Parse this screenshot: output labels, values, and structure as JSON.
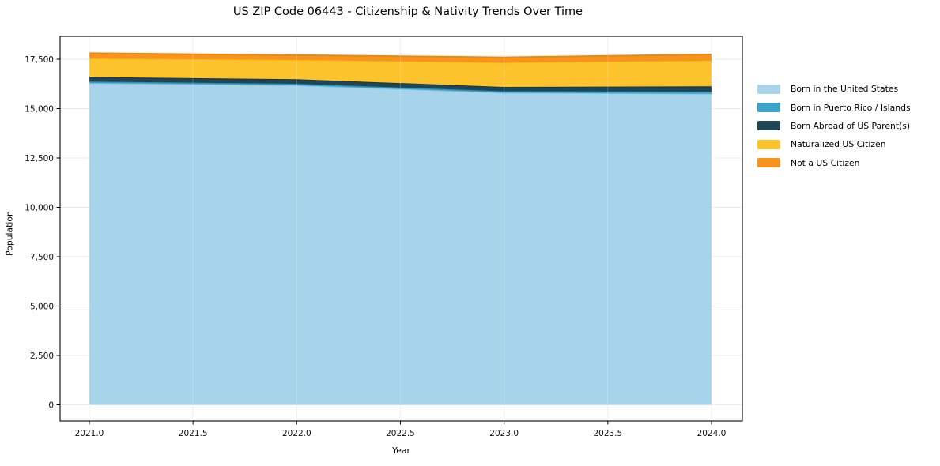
{
  "chart_data": {
    "type": "area",
    "stacked": true,
    "title": "US ZIP Code 06443 - Citizenship & Nativity Trends Over Time",
    "xlabel": "Year",
    "ylabel": "Population",
    "x": [
      2021,
      2022,
      2023,
      2024
    ],
    "series": [
      {
        "name": "Born in the United States",
        "values": [
          16290,
          16180,
          15800,
          15750
        ],
        "color": "#a7d4ea",
        "edge": "#8ec6e2"
      },
      {
        "name": "Born in Puerto Rico / Islands",
        "values": [
          80,
          80,
          80,
          110
        ],
        "color": "#3ba3c6",
        "edge": "#2e92b4"
      },
      {
        "name": "Born Abroad of US Parent(s)",
        "values": [
          230,
          230,
          220,
          270
        ],
        "color": "#1f4557",
        "edge": "#16364a"
      },
      {
        "name": "Naturalized US Citizen",
        "values": [
          940,
          975,
          1230,
          1300
        ],
        "color": "#fcc32d",
        "edge": "#f5b912"
      },
      {
        "name": "Not a US Citizen",
        "values": [
          265,
          240,
          265,
          310
        ],
        "color": "#f6941f",
        "edge": "#ee860f"
      }
    ],
    "x_ticks": [
      2021.0,
      2021.5,
      2022.0,
      2022.5,
      2023.0,
      2023.5,
      2024.0
    ],
    "x_tick_labels": [
      "2021.0",
      "2021.5",
      "2022.0",
      "2022.5",
      "2023.0",
      "2023.5",
      "2024.0"
    ],
    "y_ticks": [
      0,
      2500,
      5000,
      7500,
      10000,
      12500,
      15000,
      17500
    ],
    "y_tick_labels": [
      "0",
      "2,500",
      "5,000",
      "7,500",
      "10,000",
      "12,500",
      "15,000",
      "17,500"
    ],
    "ylim": [
      -820,
      18660
    ],
    "xlim": [
      2020.86,
      2024.15
    ],
    "grid": true,
    "legend_position": "right"
  },
  "legend": {
    "items": [
      {
        "label": "Born in the United States"
      },
      {
        "label": "Born in Puerto Rico / Islands"
      },
      {
        "label": "Born Abroad of US Parent(s)"
      },
      {
        "label": "Naturalized US Citizen"
      },
      {
        "label": "Not a US Citizen"
      }
    ]
  }
}
